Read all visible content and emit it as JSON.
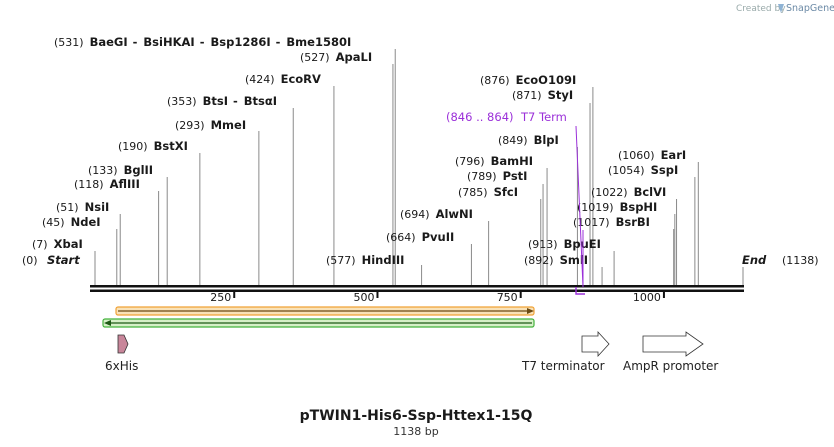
{
  "header": {
    "created_by": "Created by",
    "brand": "SnapGene",
    "logo_icon": "snapgene-logo-icon"
  },
  "plasmid": {
    "name": "pTWIN1-His6-Ssp-Httex1-15Q",
    "length_label": "1138 bp",
    "length": 1138,
    "start_label": "Start",
    "start_pos": "(0)",
    "end_label": "End",
    "end_pos": "(1138)"
  },
  "axis": {
    "ticks": [
      250,
      500,
      750,
      1000
    ]
  },
  "sites": [
    {
      "pos": "(7)",
      "pos_num": 7,
      "names": [
        "XbaI"
      ]
    },
    {
      "pos": "(45)",
      "pos_num": 45,
      "names": [
        "NdeI"
      ]
    },
    {
      "pos": "(51)",
      "pos_num": 51,
      "names": [
        "NsiI"
      ]
    },
    {
      "pos": "(118)",
      "pos_num": 118,
      "names": [
        "AflIII"
      ]
    },
    {
      "pos": "(133)",
      "pos_num": 133,
      "names": [
        "BglII"
      ]
    },
    {
      "pos": "(190)",
      "pos_num": 190,
      "names": [
        "BstXI"
      ]
    },
    {
      "pos": "(293)",
      "pos_num": 293,
      "names": [
        "MmeI"
      ]
    },
    {
      "pos": "(353)",
      "pos_num": 353,
      "names": [
        "BtsI",
        "BtsαI"
      ]
    },
    {
      "pos": "(424)",
      "pos_num": 424,
      "names": [
        "EcoRV"
      ]
    },
    {
      "pos": "(527)",
      "pos_num": 527,
      "names": [
        "ApaLI"
      ]
    },
    {
      "pos": "(531)",
      "pos_num": 531,
      "names": [
        "BaeGI",
        "BsiHKAI",
        "Bsp1286I",
        "Bme1580I"
      ]
    },
    {
      "pos": "(577)",
      "pos_num": 577,
      "names": [
        "HindIII"
      ]
    },
    {
      "pos": "(664)",
      "pos_num": 664,
      "names": [
        "PvuII"
      ]
    },
    {
      "pos": "(694)",
      "pos_num": 694,
      "names": [
        "AlwNI"
      ]
    },
    {
      "pos": "(785)",
      "pos_num": 785,
      "names": [
        "SfcI"
      ]
    },
    {
      "pos": "(789)",
      "pos_num": 789,
      "names": [
        "PstI"
      ]
    },
    {
      "pos": "(796)",
      "pos_num": 796,
      "names": [
        "BamHI"
      ]
    },
    {
      "pos": "(849)",
      "pos_num": 849,
      "names": [
        "BlpI"
      ]
    },
    {
      "pos": "(871)",
      "pos_num": 871,
      "names": [
        "StyI"
      ]
    },
    {
      "pos": "(876)",
      "pos_num": 876,
      "names": [
        "EcoO109I"
      ]
    },
    {
      "pos": "(892)",
      "pos_num": 892,
      "names": [
        "SmlI"
      ]
    },
    {
      "pos": "(913)",
      "pos_num": 913,
      "names": [
        "BpuEI"
      ]
    },
    {
      "pos": "(1017)",
      "pos_num": 1017,
      "names": [
        "BsrBI"
      ]
    },
    {
      "pos": "(1019)",
      "pos_num": 1019,
      "names": [
        "BspHI"
      ]
    },
    {
      "pos": "(1022)",
      "pos_num": 1022,
      "names": [
        "BclVI"
      ]
    },
    {
      "pos": "(1054)",
      "pos_num": 1054,
      "names": [
        "SspI"
      ]
    },
    {
      "pos": "(1060)",
      "pos_num": 1060,
      "names": [
        "EarI"
      ]
    }
  ],
  "terminator_label": {
    "range": "(846 .. 864)",
    "name": "T7 Term",
    "color": "#9b30d9"
  },
  "features": [
    {
      "name": "6xHis",
      "color": "#c8869a"
    },
    {
      "name": "T7 terminator",
      "color": "#ffffff"
    },
    {
      "name": "AmpR promoter",
      "color": "#ffffff"
    }
  ],
  "colors": {
    "orange_bar": "#f0a236",
    "green_bar": "#44b23c",
    "backbone": "#111111"
  }
}
